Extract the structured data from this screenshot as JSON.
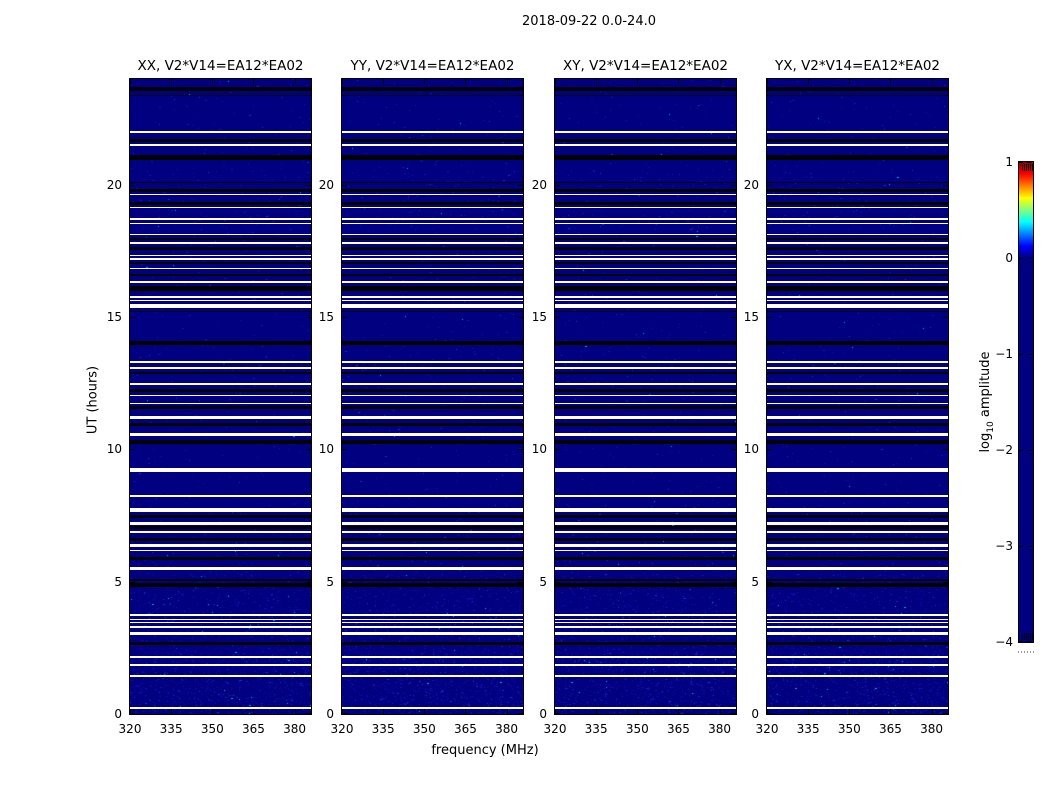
{
  "header": {
    "title": "2018-09-22 0.0-24.0"
  },
  "chart_data": {
    "type": "heatmap",
    "title": "2018-09-22 0.0-24.0",
    "panels": [
      {
        "title": "XX, V2*V14=EA12*EA02"
      },
      {
        "title": "YY, V2*V14=EA12*EA02"
      },
      {
        "title": "XY, V2*V14=EA12*EA02"
      },
      {
        "title": "YX, V2*V14=EA12*EA02"
      }
    ],
    "xaxis": {
      "label": "frequency (MHz)",
      "range": [
        320,
        386
      ],
      "ticks": [
        320,
        335,
        350,
        365,
        380
      ]
    },
    "yaxis": {
      "label": "UT (hours)",
      "range": [
        0,
        24
      ],
      "ticks": [
        20,
        15,
        10,
        5,
        0
      ]
    },
    "colorbar": {
      "label_prefix": "log",
      "label_sub": "10",
      "label_suffix": " amplitude",
      "range": [
        -4,
        1
      ],
      "ticks": [
        1,
        0,
        -1,
        -2,
        -3,
        -4
      ],
      "colormap": "jet",
      "stops": [
        {
          "v": 1.0,
          "c": "#800000"
        },
        {
          "v": 0.875,
          "c": "#ff0000"
        },
        {
          "v": 0.625,
          "c": "#ffff00"
        },
        {
          "v": 0.375,
          "c": "#00ffff"
        },
        {
          "v": 0.125,
          "c": "#0000ff"
        },
        {
          "v": 0.0,
          "c": "#000080"
        }
      ]
    },
    "base_value": -4,
    "base_color": "#000080",
    "flagged_rows_white": [
      {
        "ut": 22.0,
        "px": 2
      },
      {
        "ut": 21.51,
        "px": 2
      },
      {
        "ut": 19.67,
        "px": 1
      },
      {
        "ut": 19.18,
        "px": 1
      },
      {
        "ut": 18.69,
        "px": 2
      },
      {
        "ut": 18.54,
        "px": 1
      },
      {
        "ut": 18.16,
        "px": 1
      },
      {
        "ut": 17.82,
        "px": 2
      },
      {
        "ut": 17.33,
        "px": 1
      },
      {
        "ut": 17.18,
        "px": 2
      },
      {
        "ut": 16.84,
        "px": 1
      },
      {
        "ut": 16.31,
        "px": 2
      },
      {
        "ut": 15.75,
        "px": 2
      },
      {
        "ut": 15.64,
        "px": 1
      },
      {
        "ut": 15.41,
        "px": 4
      },
      {
        "ut": 13.3,
        "px": 2
      },
      {
        "ut": 13.07,
        "px": 2
      },
      {
        "ut": 12.47,
        "px": 2
      },
      {
        "ut": 12.06,
        "px": 1
      },
      {
        "ut": 11.76,
        "px": 1
      },
      {
        "ut": 11.23,
        "px": 3
      },
      {
        "ut": 10.59,
        "px": 3
      },
      {
        "ut": 9.23,
        "px": 4
      },
      {
        "ut": 8.25,
        "px": 2
      },
      {
        "ut": 7.72,
        "px": 4
      },
      {
        "ut": 7.23,
        "px": 3
      },
      {
        "ut": 6.86,
        "px": 2
      },
      {
        "ut": 6.37,
        "px": 3
      },
      {
        "ut": 6.18,
        "px": 1
      },
      {
        "ut": 5.5,
        "px": 3
      },
      {
        "ut": 3.73,
        "px": 2
      },
      {
        "ut": 3.58,
        "px": 1
      },
      {
        "ut": 3.47,
        "px": 1
      },
      {
        "ut": 3.28,
        "px": 2
      },
      {
        "ut": 3.05,
        "px": 3
      },
      {
        "ut": 2.15,
        "px": 2
      },
      {
        "ut": 1.85,
        "px": 2
      },
      {
        "ut": 1.43,
        "px": 2
      },
      {
        "ut": 0.23,
        "px": 2
      }
    ],
    "dark_rows_black": [
      {
        "ut": 23.62,
        "px": 4
      },
      {
        "ut": 23.4,
        "px": 1
      },
      {
        "ut": 21.7,
        "px": 3
      },
      {
        "ut": 21.06,
        "px": 5
      },
      {
        "ut": 20.12,
        "px": 1
      },
      {
        "ut": 19.82,
        "px": 3
      },
      {
        "ut": 19.33,
        "px": 3
      },
      {
        "ut": 17.97,
        "px": 2
      },
      {
        "ut": 17.63,
        "px": 3
      },
      {
        "ut": 17.03,
        "px": 2
      },
      {
        "ut": 16.58,
        "px": 2
      },
      {
        "ut": 16.09,
        "px": 5
      },
      {
        "ut": 15.22,
        "px": 1
      },
      {
        "ut": 14.02,
        "px": 4
      },
      {
        "ut": 12.88,
        "px": 2
      },
      {
        "ut": 12.24,
        "px": 3
      },
      {
        "ut": 11.6,
        "px": 3
      },
      {
        "ut": 10.96,
        "px": 3
      },
      {
        "ut": 10.29,
        "px": 4
      },
      {
        "ut": 7.5,
        "px": 3
      },
      {
        "ut": 7.05,
        "px": 3
      },
      {
        "ut": 6.63,
        "px": 3
      },
      {
        "ut": 5.88,
        "px": 3
      },
      {
        "ut": 5.05,
        "px": 2
      },
      {
        "ut": 4.86,
        "px": 4
      },
      {
        "ut": 2.68,
        "px": 3
      }
    ],
    "speckle_colors": [
      "#0a0a9d",
      "#1414bb",
      "#2a2ad0",
      "#00b4d2"
    ]
  }
}
